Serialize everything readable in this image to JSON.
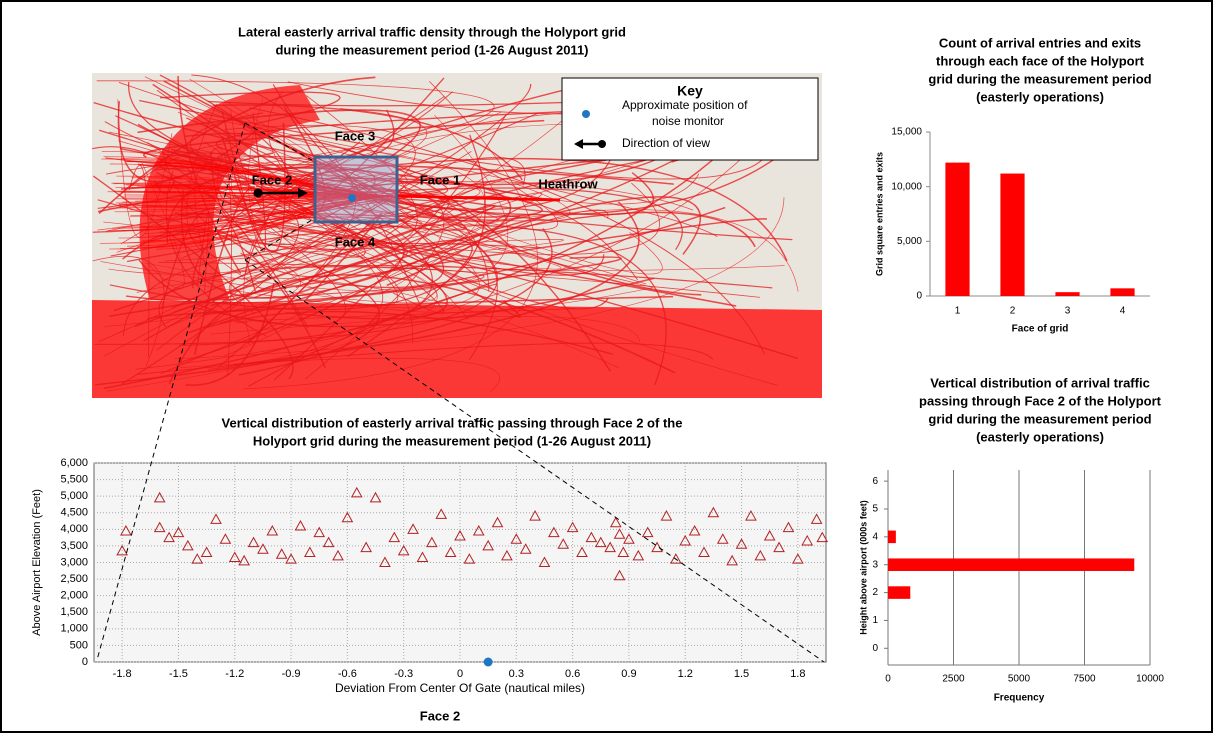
{
  "map": {
    "title": [
      "Lateral easterly arrival traffic density through the Holyport grid",
      "during the measurement period (1-26 August 2011)"
    ],
    "key_title": "Key",
    "key_monitor": [
      "Approximate position of",
      "noise monitor"
    ],
    "key_direction": "Direction of view",
    "face1": "Face 1",
    "face2": "Face 2",
    "face3": "Face 3",
    "face4": "Face 4",
    "airport": "Heathrow"
  },
  "caption": "Face 2",
  "chart_data": [
    {
      "type": "bar",
      "title": [
        "Count of arrival entries and exits",
        "through each face of the Holyport",
        "grid during the measurement period",
        "(easterly operations)"
      ],
      "x_label": "Face of grid",
      "y_label": "Grid square entries and exits",
      "categories": [
        "1",
        "2",
        "3",
        "4"
      ],
      "values": [
        12200,
        11200,
        350,
        700
      ],
      "color": "#ff0000",
      "ylim": [
        0,
        15000
      ],
      "yticks": [
        0,
        {
          "value": 5000,
          "label": "5,000"
        },
        {
          "value": 10000,
          "label": "10,000"
        },
        {
          "value": 15000,
          "label": "15,000"
        }
      ]
    },
    {
      "type": "scatter",
      "title": [
        "Vertical distribution of easterly arrival traffic passing through Face 2 of the",
        "Holyport grid during the measurement period (1-26 August 2011)"
      ],
      "x_label": "Deviation From Center Of Gate (nautical miles)",
      "y_label": "Above Airport Elevation (Feet)",
      "xlim": [
        -1.95,
        1.95
      ],
      "xticks": [
        -1.8,
        -1.5,
        -1.2,
        -0.9,
        -0.6,
        -0.3,
        0,
        0.3,
        0.6,
        0.9,
        1.2,
        1.5,
        1.8
      ],
      "ylim": [
        0,
        6000
      ],
      "yticks": [
        0,
        500,
        {
          "value": 1000,
          "label": "1,000"
        },
        {
          "value": 1500,
          "label": "1,500"
        },
        {
          "value": 2000,
          "label": "2,000"
        },
        {
          "value": 2500,
          "label": "2,500"
        },
        {
          "value": 3000,
          "label": "3,000"
        },
        {
          "value": 3500,
          "label": "3,500"
        },
        {
          "value": 4000,
          "label": "4,000"
        },
        {
          "value": 4500,
          "label": "4,500"
        },
        {
          "value": 5000,
          "label": "5,000"
        },
        {
          "value": 5500,
          "label": "5,500"
        },
        {
          "value": 6000,
          "label": "6,000"
        }
      ],
      "grid": true,
      "series": [
        {
          "color": "#b22222",
          "marker": "triangle",
          "x": [
            -1.8,
            -1.78,
            -1.6,
            -1.6,
            -1.55,
            -1.5,
            -1.45,
            -1.4,
            -1.35,
            -1.3,
            -1.25,
            -1.2,
            -1.15,
            -1.1,
            -1.05,
            -1.0,
            -0.95,
            -0.9,
            -0.85,
            -0.8,
            -0.75,
            -0.7,
            -0.65,
            -0.6,
            -0.55,
            -0.5,
            -0.45,
            -0.4,
            -0.35,
            -0.3,
            -0.25,
            -0.2,
            -0.15,
            -0.1,
            -0.05,
            0,
            0.05,
            0.1,
            0.15,
            0.2,
            0.25,
            0.3,
            0.35,
            0.4,
            0.45,
            0.5,
            0.55,
            0.6,
            0.65,
            0.7,
            0.75,
            0.8,
            0.83,
            0.85,
            0.85,
            0.87,
            0.9,
            0.95,
            1.0,
            1.05,
            1.1,
            1.15,
            1.2,
            1.25,
            1.3,
            1.35,
            1.4,
            1.45,
            1.5,
            1.55,
            1.6,
            1.65,
            1.7,
            1.75,
            1.8,
            1.85,
            1.9,
            1.93
          ],
          "values": [
            3350,
            3950,
            4950,
            4050,
            3750,
            3900,
            3500,
            3100,
            3300,
            4300,
            3700,
            3150,
            3050,
            3600,
            3400,
            3950,
            3250,
            3100,
            4100,
            3300,
            3900,
            3600,
            3200,
            4350,
            5100,
            3450,
            4950,
            3000,
            3750,
            3350,
            4000,
            3150,
            3600,
            4450,
            3300,
            3800,
            3100,
            3950,
            3500,
            4200,
            3200,
            3700,
            3400,
            4400,
            3000,
            3900,
            3550,
            4050,
            3300,
            3750,
            3600,
            3450,
            4200,
            3850,
            2600,
            3300,
            3700,
            3200,
            3900,
            3450,
            4400,
            3100,
            3650,
            3950,
            3300,
            4500,
            3700,
            3050,
            3550,
            4400,
            3200,
            3800,
            3450,
            4050,
            3100,
            3650,
            4300,
            3750
          ]
        },
        {
          "color": "#1f77c4",
          "marker": "circle",
          "x": [
            0.15
          ],
          "values": [
            0
          ]
        }
      ]
    },
    {
      "type": "hbar",
      "title": [
        "Vertical distribution of arrival traffic",
        "passing through Face 2 of the Holyport",
        "grid during the measurement period",
        "(easterly operations)"
      ],
      "x_label": "Frequency",
      "y_label": "Height above airport (000s feet)",
      "y": [
        2,
        3,
        4
      ],
      "values": [
        850,
        9400,
        300
      ],
      "color": "#ff0000",
      "xlim": [
        0,
        10000
      ],
      "xticks": [
        0,
        2500,
        5000,
        7500,
        10000
      ],
      "ylim": [
        -0.6,
        6.4
      ],
      "yticks": [
        0,
        1,
        2,
        3,
        4,
        5,
        6
      ],
      "grid": true
    }
  ]
}
